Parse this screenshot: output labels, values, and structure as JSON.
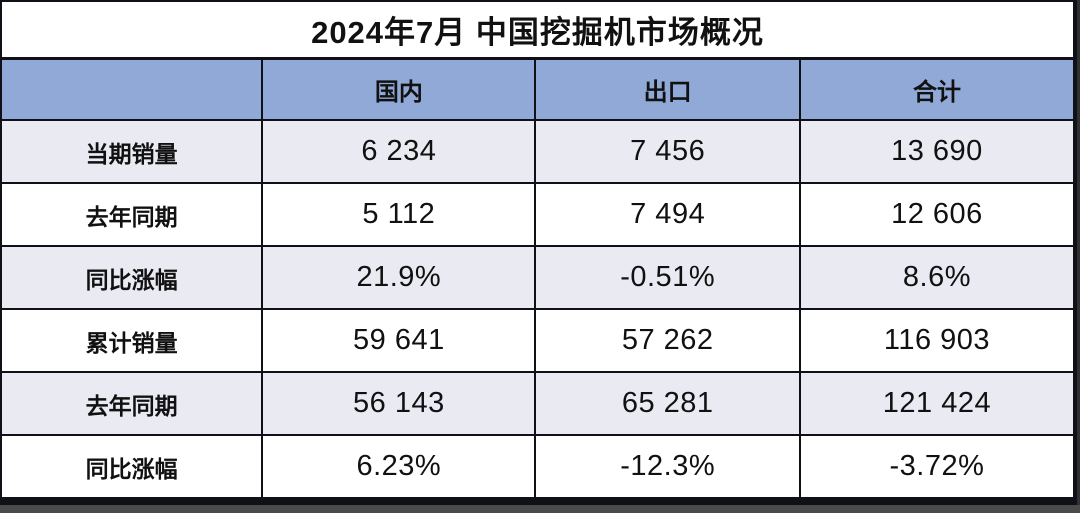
{
  "title": "2024年7月 中国挖掘机市场概况",
  "chart_data": {
    "type": "table",
    "title": "2024年7月 中国挖掘机市场概况",
    "columns": [
      "",
      "国内",
      "出口",
      "合计"
    ],
    "rows": [
      [
        "当期销量",
        "6 234",
        "7 456",
        "13 690"
      ],
      [
        "去年同期",
        "5 112",
        "7 494",
        "12 606"
      ],
      [
        "同比涨幅",
        "21.9%",
        "-0.51%",
        "8.6%"
      ],
      [
        "累计销量",
        "59 641",
        "57 262",
        "116 903"
      ],
      [
        "去年同期",
        "56 143",
        "65 281",
        "121 424"
      ],
      [
        "同比涨幅",
        "6.23%",
        "-12.3%",
        "-3.72%"
      ]
    ],
    "layout": {
      "grid": "on",
      "alternating_rows": true,
      "number_thousands_separator": "space"
    }
  },
  "colors": {
    "header_bg": "#91A9D6",
    "row_alt_bg": "#E9EAF2",
    "row_bg": "#FFFFFF",
    "border": "#101018",
    "text": "#111111",
    "shadow": "#4B4B4B"
  }
}
